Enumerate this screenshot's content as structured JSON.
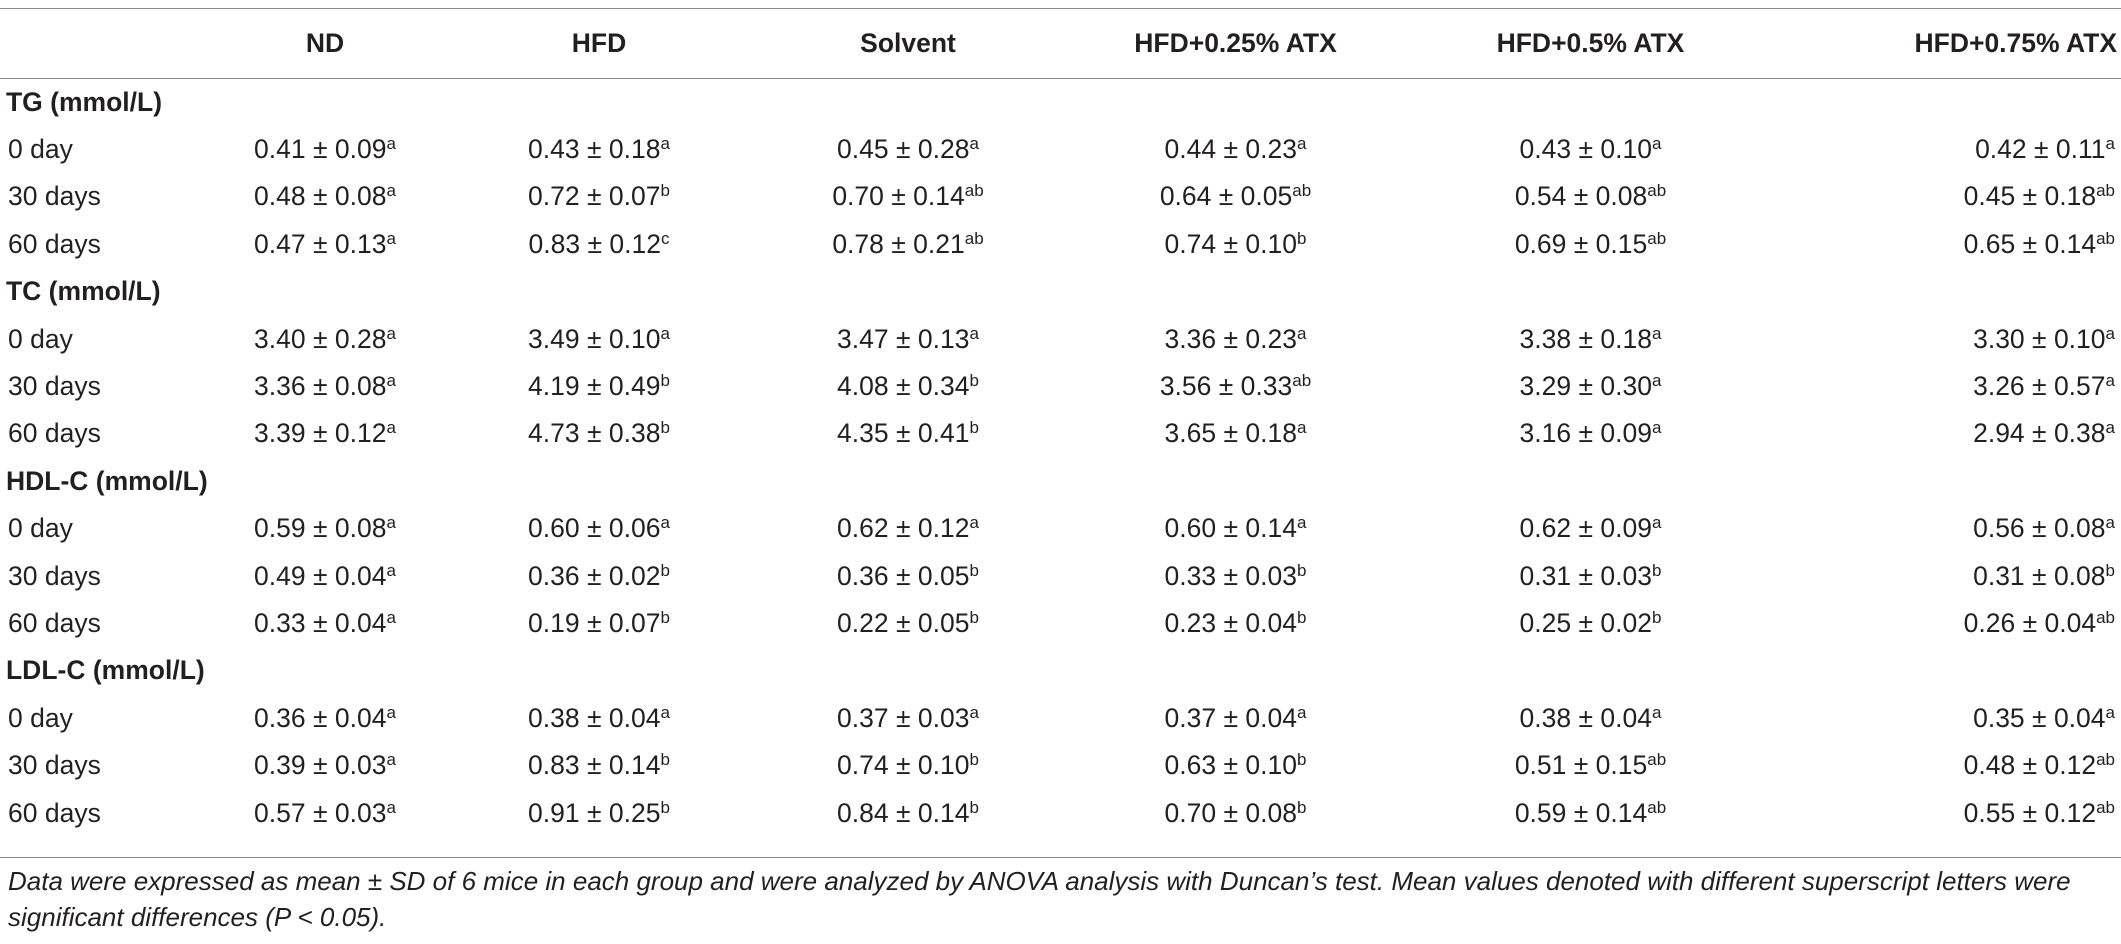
{
  "columns": [
    "",
    "ND",
    "HFD",
    "Solvent",
    "HFD+0.25% ATX",
    "HFD+0.5% ATX",
    "HFD+0.75% ATX"
  ],
  "sections": [
    {
      "title": "TG (mmol/L)",
      "rows": [
        {
          "label": "0 day",
          "cells": [
            {
              "v": "0.41 ± 0.09",
              "s": "a"
            },
            {
              "v": "0.43 ± 0.18",
              "s": "a"
            },
            {
              "v": "0.45 ± 0.28",
              "s": "a"
            },
            {
              "v": "0.44 ± 0.23",
              "s": "a"
            },
            {
              "v": "0.43 ± 0.10",
              "s": "a"
            },
            {
              "v": "0.42 ± 0.11",
              "s": "a"
            }
          ]
        },
        {
          "label": "30 days",
          "cells": [
            {
              "v": "0.48 ± 0.08",
              "s": "a"
            },
            {
              "v": "0.72 ± 0.07",
              "s": "b"
            },
            {
              "v": "0.70 ± 0.14",
              "s": "ab"
            },
            {
              "v": "0.64 ± 0.05",
              "s": "ab"
            },
            {
              "v": "0.54 ± 0.08",
              "s": "ab"
            },
            {
              "v": "0.45 ± 0.18",
              "s": "ab"
            }
          ]
        },
        {
          "label": "60 days",
          "cells": [
            {
              "v": "0.47 ± 0.13",
              "s": "a"
            },
            {
              "v": "0.83 ± 0.12",
              "s": "c"
            },
            {
              "v": "0.78 ± 0.21",
              "s": "ab"
            },
            {
              "v": "0.74 ± 0.10",
              "s": "b"
            },
            {
              "v": "0.69 ± 0.15",
              "s": "ab"
            },
            {
              "v": "0.65 ± 0.14",
              "s": "ab"
            }
          ]
        }
      ]
    },
    {
      "title": "TC (mmol/L)",
      "rows": [
        {
          "label": "0 day",
          "cells": [
            {
              "v": "3.40 ± 0.28",
              "s": "a"
            },
            {
              "v": "3.49 ± 0.10",
              "s": "a"
            },
            {
              "v": "3.47 ± 0.13",
              "s": "a"
            },
            {
              "v": "3.36 ± 0.23",
              "s": "a"
            },
            {
              "v": "3.38 ± 0.18",
              "s": "a"
            },
            {
              "v": "3.30 ± 0.10",
              "s": "a"
            }
          ]
        },
        {
          "label": "30 days",
          "cells": [
            {
              "v": "3.36 ± 0.08",
              "s": "a"
            },
            {
              "v": "4.19 ± 0.49",
              "s": "b"
            },
            {
              "v": "4.08 ± 0.34",
              "s": "b"
            },
            {
              "v": "3.56 ± 0.33",
              "s": "ab"
            },
            {
              "v": "3.29 ± 0.30",
              "s": "a"
            },
            {
              "v": "3.26 ± 0.57",
              "s": "a"
            }
          ]
        },
        {
          "label": "60 days",
          "cells": [
            {
              "v": "3.39 ± 0.12",
              "s": "a"
            },
            {
              "v": "4.73 ± 0.38",
              "s": "b"
            },
            {
              "v": "4.35 ± 0.41",
              "s": "b"
            },
            {
              "v": "3.65 ± 0.18",
              "s": "a"
            },
            {
              "v": "3.16 ± 0.09",
              "s": "a"
            },
            {
              "v": "2.94 ± 0.38",
              "s": "a"
            }
          ]
        }
      ]
    },
    {
      "title": "HDL-C (mmol/L)",
      "rows": [
        {
          "label": "0 day",
          "cells": [
            {
              "v": "0.59 ± 0.08",
              "s": "a"
            },
            {
              "v": "0.60 ± 0.06",
              "s": "a"
            },
            {
              "v": "0.62 ± 0.12",
              "s": "a"
            },
            {
              "v": "0.60 ± 0.14",
              "s": "a"
            },
            {
              "v": "0.62 ± 0.09",
              "s": "a"
            },
            {
              "v": "0.56 ± 0.08",
              "s": "a"
            }
          ]
        },
        {
          "label": "30 days",
          "cells": [
            {
              "v": "0.49 ± 0.04",
              "s": "a"
            },
            {
              "v": "0.36 ± 0.02",
              "s": "b"
            },
            {
              "v": "0.36 ± 0.05",
              "s": "b"
            },
            {
              "v": "0.33 ± 0.03",
              "s": "b"
            },
            {
              "v": "0.31 ± 0.03",
              "s": "b"
            },
            {
              "v": "0.31 ± 0.08",
              "s": "b"
            }
          ]
        },
        {
          "label": "60 days",
          "cells": [
            {
              "v": "0.33 ± 0.04",
              "s": "a"
            },
            {
              "v": "0.19 ± 0.07",
              "s": "b"
            },
            {
              "v": "0.22 ± 0.05",
              "s": "b"
            },
            {
              "v": "0.23 ± 0.04",
              "s": "b"
            },
            {
              "v": "0.25 ± 0.02",
              "s": "b"
            },
            {
              "v": "0.26 ± 0.04",
              "s": "ab"
            }
          ]
        }
      ]
    },
    {
      "title": "LDL-C (mmol/L)",
      "rows": [
        {
          "label": "0 day",
          "cells": [
            {
              "v": "0.36 ± 0.04",
              "s": "a"
            },
            {
              "v": "0.38 ± 0.04",
              "s": "a"
            },
            {
              "v": "0.37 ± 0.03",
              "s": "a"
            },
            {
              "v": "0.37 ± 0.04",
              "s": "a"
            },
            {
              "v": "0.38 ± 0.04",
              "s": "a"
            },
            {
              "v": "0.35 ± 0.04",
              "s": "a"
            }
          ]
        },
        {
          "label": "30 days",
          "cells": [
            {
              "v": "0.39 ± 0.03",
              "s": "a"
            },
            {
              "v": "0.83 ± 0.14",
              "s": "b"
            },
            {
              "v": "0.74 ± 0.10",
              "s": "b"
            },
            {
              "v": "0.63 ± 0.10",
              "s": "b"
            },
            {
              "v": "0.51 ± 0.15",
              "s": "ab"
            },
            {
              "v": "0.48 ± 0.12",
              "s": "ab"
            }
          ]
        },
        {
          "label": "60 days",
          "cells": [
            {
              "v": "0.57 ± 0.03",
              "s": "a"
            },
            {
              "v": "0.91 ± 0.25",
              "s": "b"
            },
            {
              "v": "0.84 ± 0.14",
              "s": "b"
            },
            {
              "v": "0.70 ± 0.08",
              "s": "b"
            },
            {
              "v": "0.59 ± 0.14",
              "s": "ab"
            },
            {
              "v": "0.55 ± 0.12",
              "s": "ab"
            }
          ]
        }
      ]
    }
  ],
  "footnote": "Data were expressed as mean ± SD of 6 mice in each group and were analyzed by ANOVA analysis with Duncan’s test. Mean values denoted with different superscript letters were significant differences (P < 0.05)."
}
